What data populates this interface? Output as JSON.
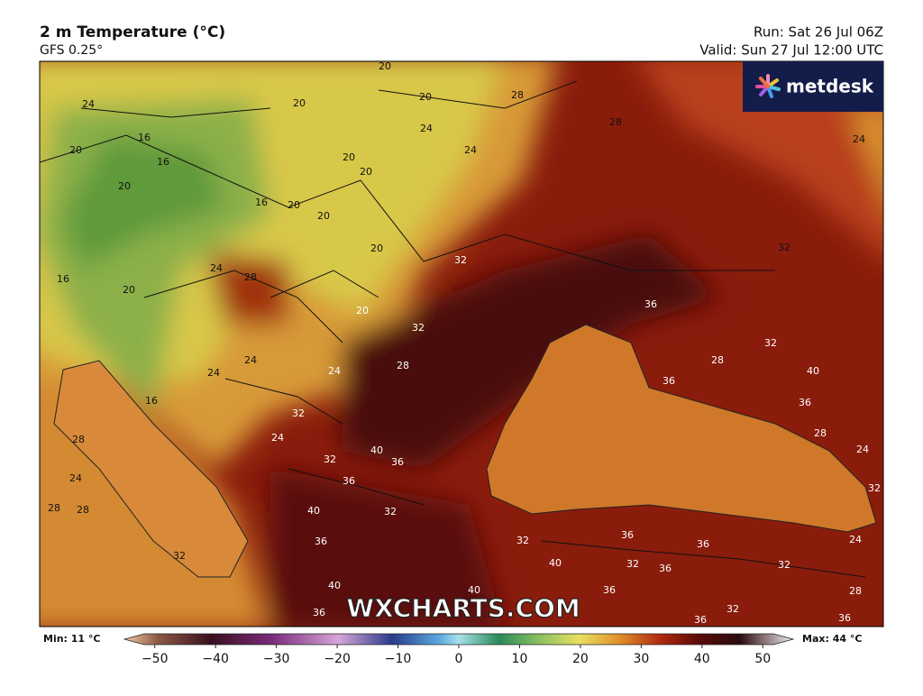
{
  "header": {
    "title": "2 m Temperature (°C)",
    "subtitle": "GFS 0.25°",
    "run": "Run: Sat 26 Jul 06Z",
    "valid": "Valid: Sun 27 Jul 12:00 UTC"
  },
  "logo": "metdesk",
  "watermark": "WXCHARTS.COM",
  "contour_labels": [
    20,
    24,
    20,
    28,
    20,
    16,
    20,
    24,
    24,
    28,
    24,
    16,
    20,
    20,
    20,
    16,
    20,
    20,
    20,
    32,
    32,
    24,
    28,
    16,
    20,
    20,
    36,
    32,
    32,
    24,
    24,
    28,
    24,
    28,
    40,
    36,
    16,
    36,
    32,
    28,
    24,
    28,
    40,
    24,
    32,
    36,
    24,
    36,
    32,
    28,
    28,
    40,
    32,
    36,
    36,
    32,
    36,
    24,
    40,
    32,
    36,
    32,
    32,
    40,
    40,
    36,
    28,
    36,
    32,
    36,
    36
  ],
  "colorbar": {
    "min_label": "Min: 11 °C",
    "max_label": "Max: 44 °C",
    "lim": [
      -55,
      55
    ],
    "ticks": [
      {
        "value": -50,
        "label": "−50"
      },
      {
        "value": -40,
        "label": "−40"
      },
      {
        "value": -30,
        "label": "−30"
      },
      {
        "value": -20,
        "label": "−20"
      },
      {
        "value": -10,
        "label": "−10"
      },
      0,
      10,
      20,
      30,
      40,
      50
    ]
  }
}
